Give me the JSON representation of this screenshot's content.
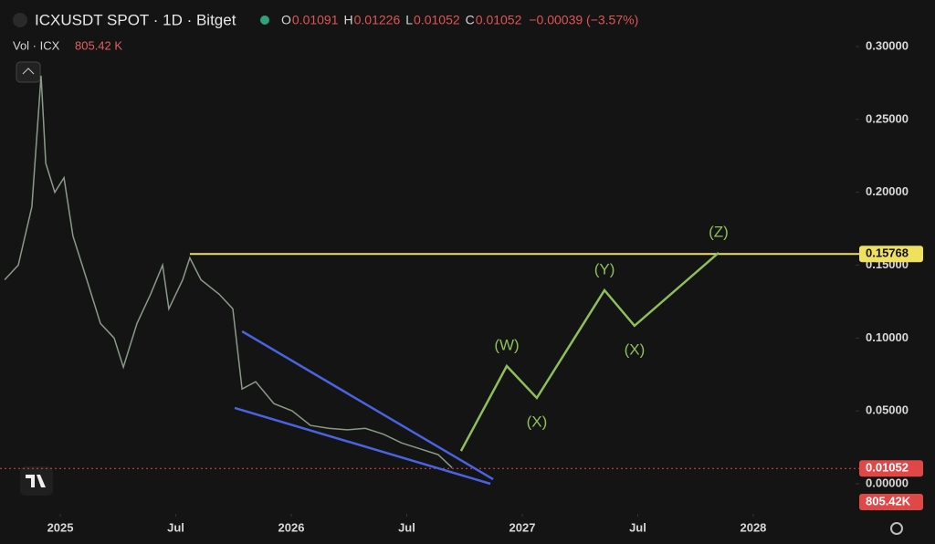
{
  "chart_data": {
    "type": "line",
    "title": "ICXUSDT SPOT · 1D · Bitget",
    "ohlc": [
      {
        "key": "O",
        "value": "0.01091"
      },
      {
        "key": "H",
        "value": "0.01226"
      },
      {
        "key": "L",
        "value": "0.01052"
      },
      {
        "key": "C",
        "value": "0.01052"
      }
    ],
    "change": "−0.00039 (−3.57%)",
    "volume_label": "Vol · ICX",
    "volume_value": "805.42 K",
    "x": [
      2024.759,
      2024.818,
      2024.877,
      2024.917,
      2024.937,
      2024.976,
      2025.016,
      2025.055,
      2025.115,
      2025.174,
      2025.233,
      2025.273,
      2025.332,
      2025.391,
      2025.443,
      2025.47,
      2025.53,
      2025.561,
      2025.609,
      2025.688,
      2025.747,
      2025.787,
      2025.846,
      2025.925,
      2026.004,
      2026.083,
      2026.162,
      2026.241,
      2026.32,
      2026.399,
      2026.478,
      2026.557,
      2026.636,
      2026.696
    ],
    "series": [
      {
        "name": "ICXUSDT",
        "color": "#8a9a88",
        "values": [
          0.14,
          0.15,
          0.19,
          0.28,
          0.22,
          0.2,
          0.21,
          0.17,
          0.14,
          0.11,
          0.1,
          0.08,
          0.11,
          0.13,
          0.15,
          0.12,
          0.14,
          0.155,
          0.14,
          0.13,
          0.12,
          0.065,
          0.07,
          0.055,
          0.05,
          0.04,
          0.038,
          0.037,
          0.038,
          0.034,
          0.028,
          0.024,
          0.02,
          0.011
        ]
      }
    ],
    "xlim": [
      2024.739,
      2028.435
    ],
    "ylim": [
      0,
      0.3
    ],
    "xticks": [
      2025,
      {
        "value": 2025.5,
        "label": "Jul"
      },
      2026,
      {
        "value": 2026.5,
        "label": "Jul"
      },
      2027,
      {
        "value": 2027.5,
        "label": "Jul"
      },
      2028
    ],
    "yticks": [
      {
        "value": 0,
        "label": "0.00000"
      },
      {
        "value": 0.05,
        "label": "0.05000"
      },
      {
        "value": 0.1,
        "label": "0.10000"
      },
      {
        "value": 0.15,
        "label": "0.15000"
      },
      {
        "value": 0.2,
        "label": "0.20000"
      },
      {
        "value": 0.25,
        "label": "0.25000"
      },
      {
        "value": 0.3,
        "label": "0.30000"
      }
    ],
    "resistance": {
      "value": 0.15768,
      "label": "0.15768",
      "color": "#f0e060",
      "start": 2025.561
    },
    "last_price": {
      "value": 0.01052,
      "label": "0.01052",
      "color": "#e04848"
    },
    "volume_tag": "805.42K",
    "wedge": [
      {
        "x": [
          2025.787,
          2026.874
        ],
        "y": [
          0.1046,
          0.0031
        ]
      },
      {
        "x": [
          2025.755,
          2026.862
        ],
        "y": [
          0.052,
          0
        ]
      }
    ],
    "wave": {
      "color": "#8fbf5a",
      "x": [
        2026.735,
        2026.933,
        2027.063,
        2027.356,
        2027.486,
        2027.85
      ],
      "y": [
        0.0225,
        0.0808,
        0.0589,
        0.1328,
        0.1084,
        0.1585
      ],
      "labels": [
        null,
        "(W)",
        "(X)",
        "(Y)",
        "(X)",
        "(Z)"
      ]
    }
  }
}
